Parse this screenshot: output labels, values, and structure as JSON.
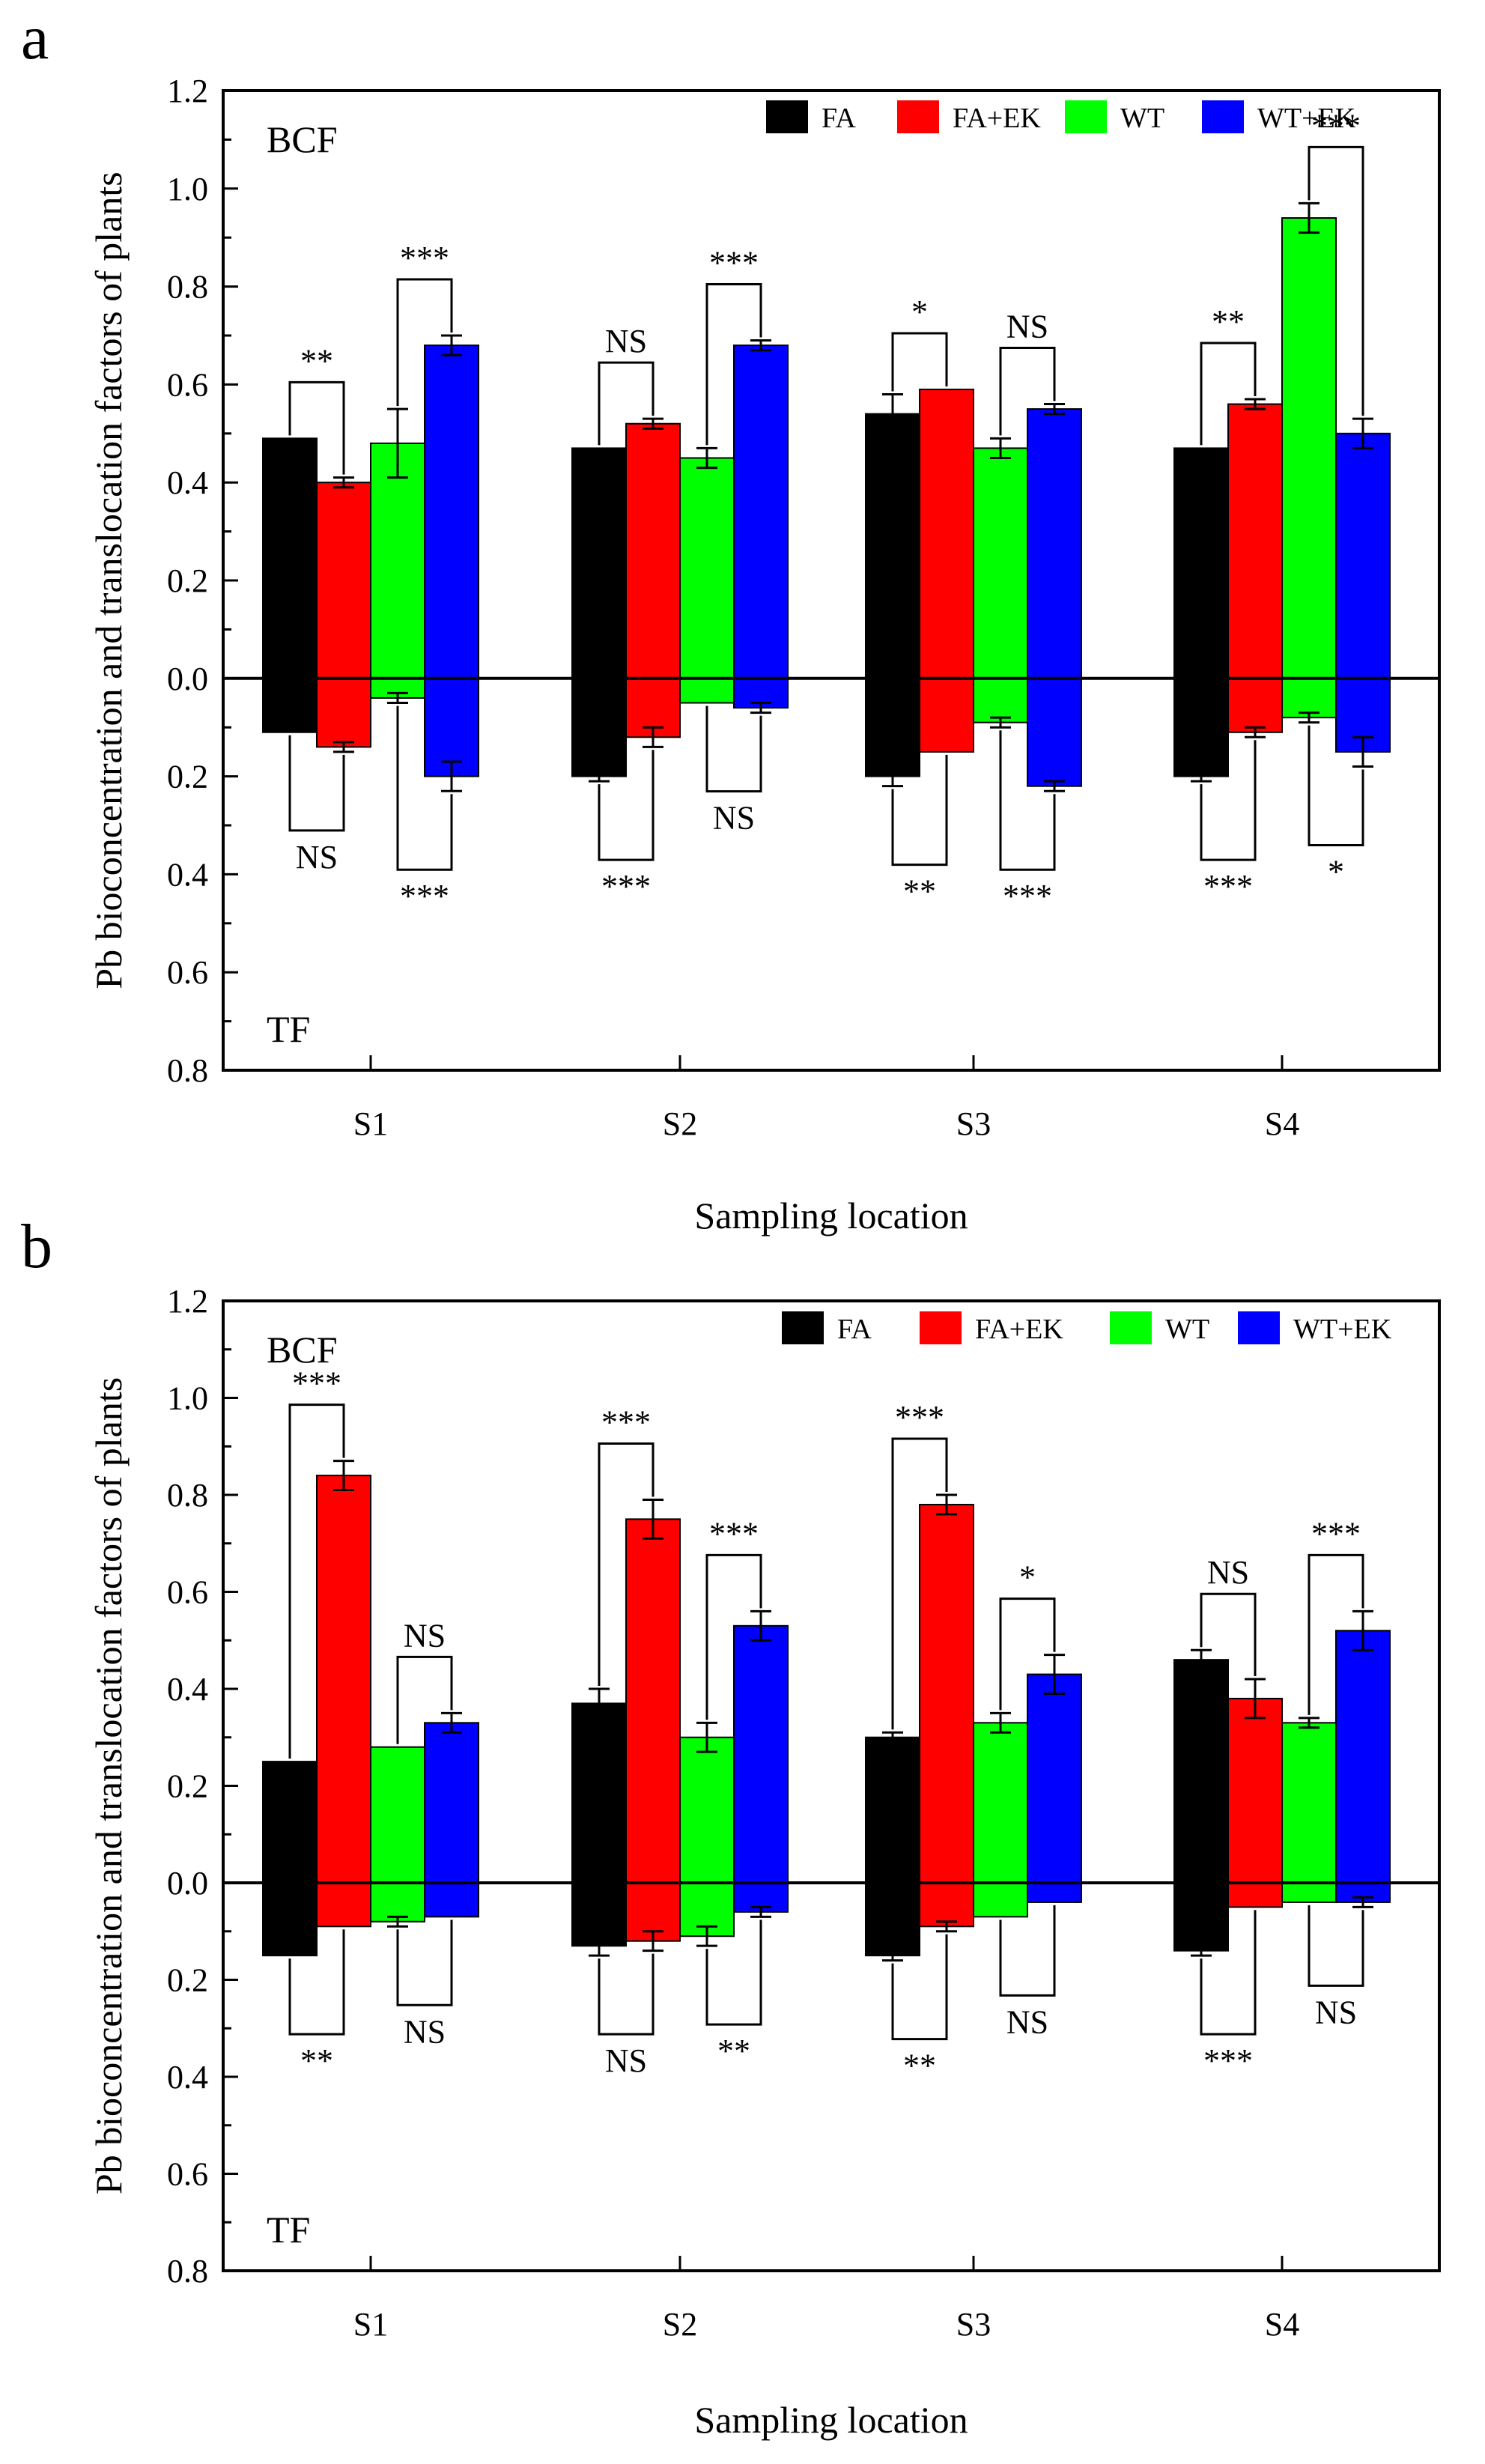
{
  "chart_data": [
    {
      "panel_label": "a",
      "type": "bar",
      "categories": [
        "S1",
        "S2",
        "S3",
        "S4"
      ],
      "xlabel": "Sampling location",
      "ylabel": "Pb bioconcentration and translocation factors of plants",
      "upper_label": "BCF",
      "lower_label": "TF",
      "ylim": [
        -0.8,
        1.2
      ],
      "y_ticks": [
        1.2,
        1.0,
        0.8,
        0.6,
        0.4,
        0.2,
        0.0,
        -0.2,
        -0.4,
        -0.6,
        -0.8
      ],
      "y_tick_labels": [
        "1.2",
        "1.0",
        "0.8",
        "0.6",
        "0.4",
        "0.2",
        "0.0",
        "0.2",
        "0.4",
        "0.6",
        "0.8"
      ],
      "colors": [
        "#000000",
        "#ff0000",
        "#00ff00",
        "#0000ff"
      ],
      "series": [
        {
          "name": "FA",
          "bcf": [
            0.49,
            0.47,
            0.54,
            0.47
          ],
          "bcf_err": [
            0.0,
            0.0,
            0.04,
            0.0
          ],
          "tf": [
            0.11,
            0.2,
            0.2,
            0.2
          ],
          "tf_err": [
            0.0,
            0.01,
            0.02,
            0.01
          ]
        },
        {
          "name": "FA+EK",
          "bcf": [
            0.4,
            0.52,
            0.59,
            0.56
          ],
          "bcf_err": [
            0.01,
            0.01,
            0.0,
            0.01
          ],
          "tf": [
            0.14,
            0.12,
            0.15,
            0.11
          ],
          "tf_err": [
            0.01,
            0.02,
            0.0,
            0.01
          ]
        },
        {
          "name": "WT",
          "bcf": [
            0.48,
            0.45,
            0.47,
            0.94
          ],
          "bcf_err": [
            0.07,
            0.02,
            0.02,
            0.03
          ],
          "tf": [
            0.04,
            0.05,
            0.09,
            0.08
          ],
          "tf_err": [
            0.01,
            0.0,
            0.01,
            0.01
          ]
        },
        {
          "name": "WT+EK",
          "bcf": [
            0.68,
            0.68,
            0.55,
            0.5
          ],
          "bcf_err": [
            0.02,
            0.01,
            0.01,
            0.03
          ],
          "tf": [
            0.2,
            0.06,
            0.22,
            0.15
          ],
          "tf_err": [
            0.03,
            0.01,
            0.01,
            0.03
          ]
        }
      ],
      "significance": [
        {
          "category": "S1",
          "pair": [
            "FA",
            "FA+EK"
          ],
          "side": "bcf",
          "label": "**"
        },
        {
          "category": "S1",
          "pair": [
            "WT",
            "WT+EK"
          ],
          "side": "bcf",
          "label": "***"
        },
        {
          "category": "S2",
          "pair": [
            "FA",
            "FA+EK"
          ],
          "side": "bcf",
          "label": "NS"
        },
        {
          "category": "S2",
          "pair": [
            "WT",
            "WT+EK"
          ],
          "side": "bcf",
          "label": "***"
        },
        {
          "category": "S3",
          "pair": [
            "FA",
            "FA+EK"
          ],
          "side": "bcf",
          "label": "*"
        },
        {
          "category": "S3",
          "pair": [
            "WT",
            "WT+EK"
          ],
          "side": "bcf",
          "label": "NS"
        },
        {
          "category": "S4",
          "pair": [
            "FA",
            "FA+EK"
          ],
          "side": "bcf",
          "label": "**"
        },
        {
          "category": "S4",
          "pair": [
            "WT",
            "WT+EK"
          ],
          "side": "bcf",
          "label": "***"
        },
        {
          "category": "S1",
          "pair": [
            "FA",
            "FA+EK"
          ],
          "side": "tf",
          "label": "NS"
        },
        {
          "category": "S1",
          "pair": [
            "WT",
            "WT+EK"
          ],
          "side": "tf",
          "label": "***"
        },
        {
          "category": "S2",
          "pair": [
            "FA",
            "FA+EK"
          ],
          "side": "tf",
          "label": "***"
        },
        {
          "category": "S2",
          "pair": [
            "WT",
            "WT+EK"
          ],
          "side": "tf",
          "label": "NS"
        },
        {
          "category": "S3",
          "pair": [
            "FA",
            "FA+EK"
          ],
          "side": "tf",
          "label": "**"
        },
        {
          "category": "S3",
          "pair": [
            "WT",
            "WT+EK"
          ],
          "side": "tf",
          "label": "***"
        },
        {
          "category": "S4",
          "pair": [
            "FA",
            "FA+EK"
          ],
          "side": "tf",
          "label": "***"
        },
        {
          "category": "S4",
          "pair": [
            "WT",
            "WT+EK"
          ],
          "side": "tf",
          "label": "*"
        }
      ]
    },
    {
      "panel_label": "b",
      "type": "bar",
      "categories": [
        "S1",
        "S2",
        "S3",
        "S4"
      ],
      "xlabel": "Sampling location",
      "ylabel": "Pb bioconcentration and translocation factors of plants",
      "upper_label": "BCF",
      "lower_label": "TF",
      "ylim": [
        -0.8,
        1.2
      ],
      "y_ticks": [
        1.2,
        1.0,
        0.8,
        0.6,
        0.4,
        0.2,
        0.0,
        -0.2,
        -0.4,
        -0.6,
        -0.8
      ],
      "y_tick_labels": [
        "1.2",
        "1.0",
        "0.8",
        "0.6",
        "0.4",
        "0.2",
        "0.0",
        "0.2",
        "0.4",
        "0.6",
        "0.8"
      ],
      "colors": [
        "#000000",
        "#ff0000",
        "#00ff00",
        "#0000ff"
      ],
      "series": [
        {
          "name": "FA",
          "bcf": [
            0.25,
            0.37,
            0.3,
            0.46
          ],
          "bcf_err": [
            0.0,
            0.03,
            0.01,
            0.02
          ],
          "tf": [
            0.15,
            0.13,
            0.15,
            0.14
          ],
          "tf_err": [
            0.0,
            0.02,
            0.01,
            0.01
          ]
        },
        {
          "name": "FA+EK",
          "bcf": [
            0.84,
            0.75,
            0.78,
            0.38
          ],
          "bcf_err": [
            0.03,
            0.04,
            0.02,
            0.04
          ],
          "tf": [
            0.09,
            0.12,
            0.09,
            0.05
          ],
          "tf_err": [
            0.0,
            0.02,
            0.01,
            0.0
          ]
        },
        {
          "name": "WT",
          "bcf": [
            0.28,
            0.3,
            0.33,
            0.33
          ],
          "bcf_err": [
            0.0,
            0.03,
            0.02,
            0.01
          ],
          "tf": [
            0.08,
            0.11,
            0.07,
            0.04
          ],
          "tf_err": [
            0.01,
            0.02,
            0.0,
            0.0
          ]
        },
        {
          "name": "WT+EK",
          "bcf": [
            0.33,
            0.53,
            0.43,
            0.52
          ],
          "bcf_err": [
            0.02,
            0.03,
            0.04,
            0.04
          ],
          "tf": [
            0.07,
            0.06,
            0.04,
            0.04
          ],
          "tf_err": [
            0.0,
            0.01,
            0.0,
            0.01
          ]
        }
      ],
      "significance": [
        {
          "category": "S1",
          "pair": [
            "FA",
            "FA+EK"
          ],
          "side": "bcf",
          "label": "***"
        },
        {
          "category": "S1",
          "pair": [
            "WT",
            "WT+EK"
          ],
          "side": "bcf",
          "label": "NS"
        },
        {
          "category": "S2",
          "pair": [
            "FA",
            "FA+EK"
          ],
          "side": "bcf",
          "label": "***"
        },
        {
          "category": "S2",
          "pair": [
            "WT",
            "WT+EK"
          ],
          "side": "bcf",
          "label": "***"
        },
        {
          "category": "S3",
          "pair": [
            "FA",
            "FA+EK"
          ],
          "side": "bcf",
          "label": "***"
        },
        {
          "category": "S3",
          "pair": [
            "WT",
            "WT+EK"
          ],
          "side": "bcf",
          "label": "*"
        },
        {
          "category": "S4",
          "pair": [
            "FA",
            "FA+EK"
          ],
          "side": "bcf",
          "label": "NS"
        },
        {
          "category": "S4",
          "pair": [
            "WT",
            "WT+EK"
          ],
          "side": "bcf",
          "label": "***"
        },
        {
          "category": "S1",
          "pair": [
            "FA",
            "FA+EK"
          ],
          "side": "tf",
          "label": "**"
        },
        {
          "category": "S1",
          "pair": [
            "WT",
            "WT+EK"
          ],
          "side": "tf",
          "label": "NS"
        },
        {
          "category": "S2",
          "pair": [
            "FA",
            "FA+EK"
          ],
          "side": "tf",
          "label": "NS"
        },
        {
          "category": "S2",
          "pair": [
            "WT",
            "WT+EK"
          ],
          "side": "tf",
          "label": "**"
        },
        {
          "category": "S3",
          "pair": [
            "FA",
            "FA+EK"
          ],
          "side": "tf",
          "label": "**"
        },
        {
          "category": "S3",
          "pair": [
            "WT",
            "WT+EK"
          ],
          "side": "tf",
          "label": "NS"
        },
        {
          "category": "S4",
          "pair": [
            "FA",
            "FA+EK"
          ],
          "side": "tf",
          "label": "***"
        },
        {
          "category": "S4",
          "pair": [
            "WT",
            "WT+EK"
          ],
          "side": "tf",
          "label": "NS"
        }
      ]
    }
  ]
}
